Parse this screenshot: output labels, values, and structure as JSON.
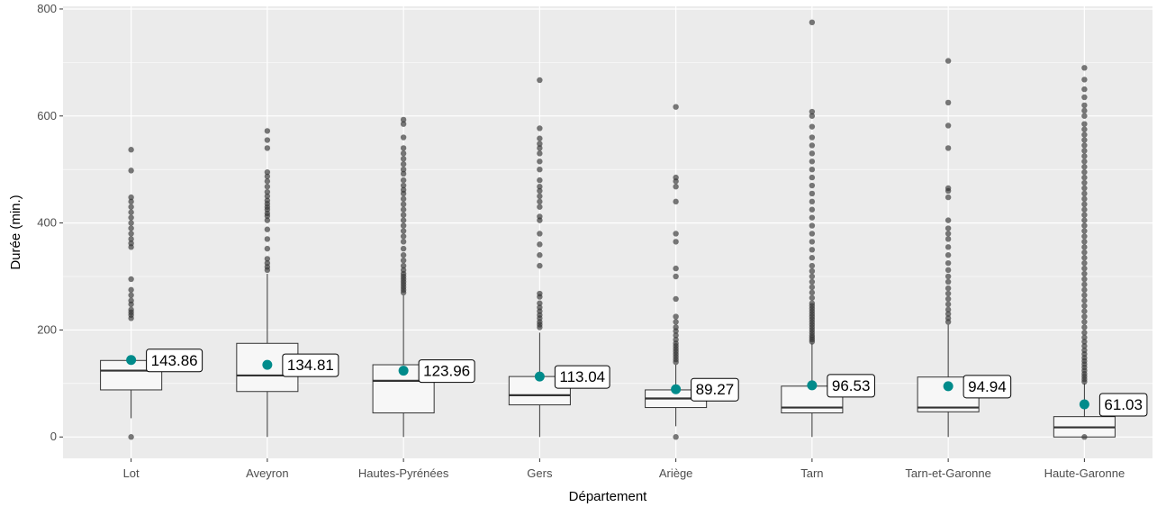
{
  "chart_data": {
    "type": "boxplot",
    "xlabel": "Département",
    "ylabel": "Durée (min.)",
    "ylim": [
      -40,
      805
    ],
    "yticks": [
      0,
      200,
      400,
      600,
      800
    ],
    "grid": true,
    "colors": {
      "panel": "#ebebeb",
      "grid": "#ffffff",
      "box_fill": "#f7f7f7",
      "box_line": "#333333",
      "outlier": "#333333",
      "mean_point": "#008b8b"
    },
    "categories": [
      "Lot",
      "Aveyron",
      "Hautes-Pyrénées",
      "Gers",
      "Ariège",
      "Tarn",
      "Tarn-et-Garonne",
      "Haute-Garonne"
    ],
    "boxes": [
      {
        "category": "Lot",
        "min": 35,
        "q1": 88,
        "median": 124,
        "q3": 143,
        "max": 143,
        "mean": 143.86,
        "mean_label": "143.86",
        "outliers": [
          0,
          222,
          228,
          233,
          238,
          248,
          255,
          265,
          275,
          295,
          355,
          362,
          370,
          380,
          390,
          400,
          410,
          420,
          430,
          440,
          448,
          498,
          537
        ]
      },
      {
        "category": "Aveyron",
        "min": 0,
        "q1": 85,
        "median": 115,
        "q3": 175,
        "max": 305,
        "mean": 134.81,
        "mean_label": "134.81",
        "outliers": [
          312,
          318,
          325,
          333,
          352,
          370,
          388,
          405,
          413,
          418,
          425,
          430,
          436,
          442,
          450,
          458,
          468,
          478,
          487,
          495,
          540,
          555,
          572
        ]
      },
      {
        "category": "Hautes-Pyrénées",
        "min": 0,
        "q1": 45,
        "median": 105,
        "q3": 135,
        "max": 265,
        "mean": 123.96,
        "mean_label": "123.96",
        "outliers": [
          270,
          275,
          280,
          285,
          290,
          295,
          300,
          305,
          312,
          320,
          330,
          340,
          352,
          365,
          375,
          385,
          395,
          405,
          415,
          425,
          435,
          445,
          455,
          462,
          470,
          480,
          492,
          500,
          510,
          520,
          530,
          540,
          560,
          585,
          593
        ]
      },
      {
        "category": "Gers",
        "min": 0,
        "q1": 60,
        "median": 78,
        "q3": 113,
        "max": 195,
        "mean": 113.04,
        "mean_label": "113.04",
        "outliers": [
          205,
          210,
          215,
          222,
          228,
          235,
          242,
          250,
          262,
          268,
          320,
          340,
          360,
          380,
          405,
          412,
          430,
          440,
          450,
          460,
          468,
          480,
          500,
          515,
          530,
          540,
          548,
          558,
          577,
          667
        ]
      },
      {
        "category": "Ariège",
        "min": 20,
        "q1": 55,
        "median": 72,
        "q3": 88,
        "max": 135,
        "mean": 89.27,
        "mean_label": "89.27",
        "outliers": [
          0,
          140,
          145,
          150,
          155,
          160,
          165,
          170,
          175,
          182,
          190,
          198,
          205,
          215,
          225,
          258,
          300,
          315,
          365,
          380,
          440,
          468,
          478,
          485,
          617
        ]
      },
      {
        "category": "Tarn",
        "min": 0,
        "q1": 45,
        "median": 55,
        "q3": 95,
        "max": 175,
        "mean": 96.53,
        "mean_label": "96.53",
        "outliers": [
          178,
          182,
          186,
          190,
          195,
          200,
          205,
          210,
          215,
          220,
          225,
          230,
          235,
          240,
          245,
          250,
          260,
          270,
          280,
          290,
          300,
          310,
          320,
          335,
          350,
          365,
          380,
          395,
          410,
          425,
          440,
          455,
          470,
          485,
          500,
          515,
          530,
          545,
          560,
          580,
          600,
          608,
          775
        ]
      },
      {
        "category": "Tarn-et-Garonne",
        "min": 0,
        "q1": 47,
        "median": 55,
        "q3": 112,
        "max": 210,
        "mean": 94.94,
        "mean_label": "94.94",
        "outliers": [
          215,
          222,
          230,
          238,
          248,
          258,
          268,
          278,
          290,
          300,
          312,
          325,
          340,
          355,
          370,
          380,
          390,
          405,
          448,
          460,
          465,
          540,
          582,
          625,
          703
        ]
      },
      {
        "category": "Haute-Garonne",
        "min": 0,
        "q1": 0,
        "median": 18,
        "q3": 38,
        "max": 100,
        "mean": 61.03,
        "mean_label": "61.03",
        "outliers": [
          0,
          103,
          108,
          113,
          118,
          124,
          130,
          136,
          142,
          148,
          155,
          162,
          170,
          178,
          186,
          195,
          205,
          215,
          225,
          235,
          245,
          255,
          265,
          275,
          285,
          295,
          305,
          315,
          325,
          335,
          345,
          355,
          365,
          375,
          385,
          395,
          405,
          415,
          425,
          435,
          445,
          455,
          465,
          475,
          485,
          495,
          505,
          515,
          525,
          535,
          545,
          555,
          565,
          575,
          585,
          600,
          610,
          620,
          635,
          650,
          668,
          690
        ]
      }
    ]
  }
}
